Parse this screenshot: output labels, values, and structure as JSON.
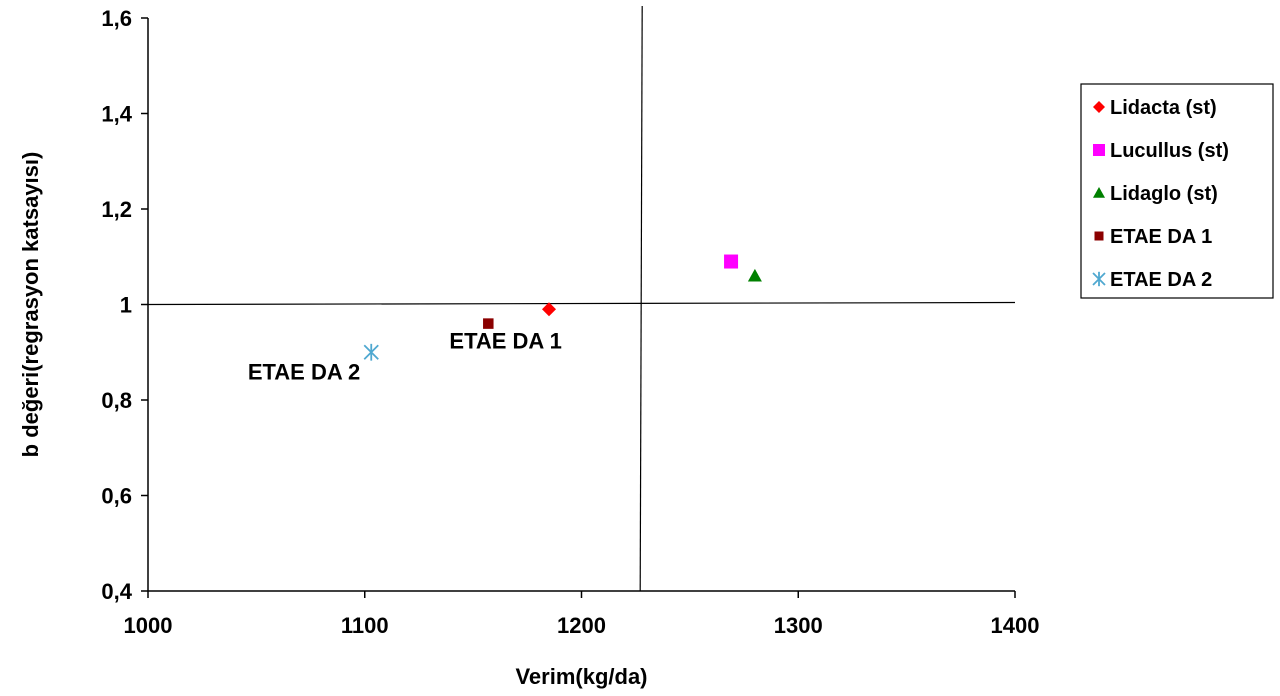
{
  "chart_data": {
    "type": "scatter",
    "xlabel": "Verim(kg/da)",
    "ylabel": "b değeri(regrasyon katsayısı)",
    "xlim": [
      1000,
      1400
    ],
    "ylim": [
      0.4,
      1.6
    ],
    "x_ticks": [
      1000,
      1100,
      1200,
      1300,
      1400
    ],
    "x_tick_labels": [
      "1000",
      "1100",
      "1200",
      "1300",
      "1400"
    ],
    "y_ticks": [
      0.4,
      0.6,
      0.8,
      1.0,
      1.2,
      1.4,
      1.6
    ],
    "y_tick_labels": [
      "0,4",
      "0,6",
      "0,8",
      "1",
      "1,2",
      "1,4",
      "1,6"
    ],
    "reference_lines": {
      "x": 1228,
      "y": 1.0
    },
    "grid": false,
    "legend_position": "right",
    "series": [
      {
        "name": "Lidacta (st)",
        "marker": "diamond",
        "color": "#ff0000",
        "points": [
          {
            "x": 1185,
            "y": 0.99
          }
        ]
      },
      {
        "name": "Lucullus (st)",
        "marker": "square",
        "color": "#ff00ff",
        "points": [
          {
            "x": 1269,
            "y": 1.09
          }
        ]
      },
      {
        "name": "Lidaglo (st)",
        "marker": "triangle",
        "color": "#008000",
        "points": [
          {
            "x": 1280,
            "y": 1.06
          }
        ]
      },
      {
        "name": "ETAE DA 1",
        "marker": "small-square",
        "color": "#8b0000",
        "points": [
          {
            "x": 1157,
            "y": 0.96
          }
        ]
      },
      {
        "name": "ETAE DA 2",
        "marker": "asterisk",
        "color": "#4fa8d0",
        "points": [
          {
            "x": 1103,
            "y": 0.9
          }
        ]
      }
    ],
    "annotations": [
      {
        "text": "ETAE DA 1",
        "x": 1165,
        "y": 0.925
      },
      {
        "text": "ETAE DA 2",
        "x": 1072,
        "y": 0.86
      }
    ]
  }
}
